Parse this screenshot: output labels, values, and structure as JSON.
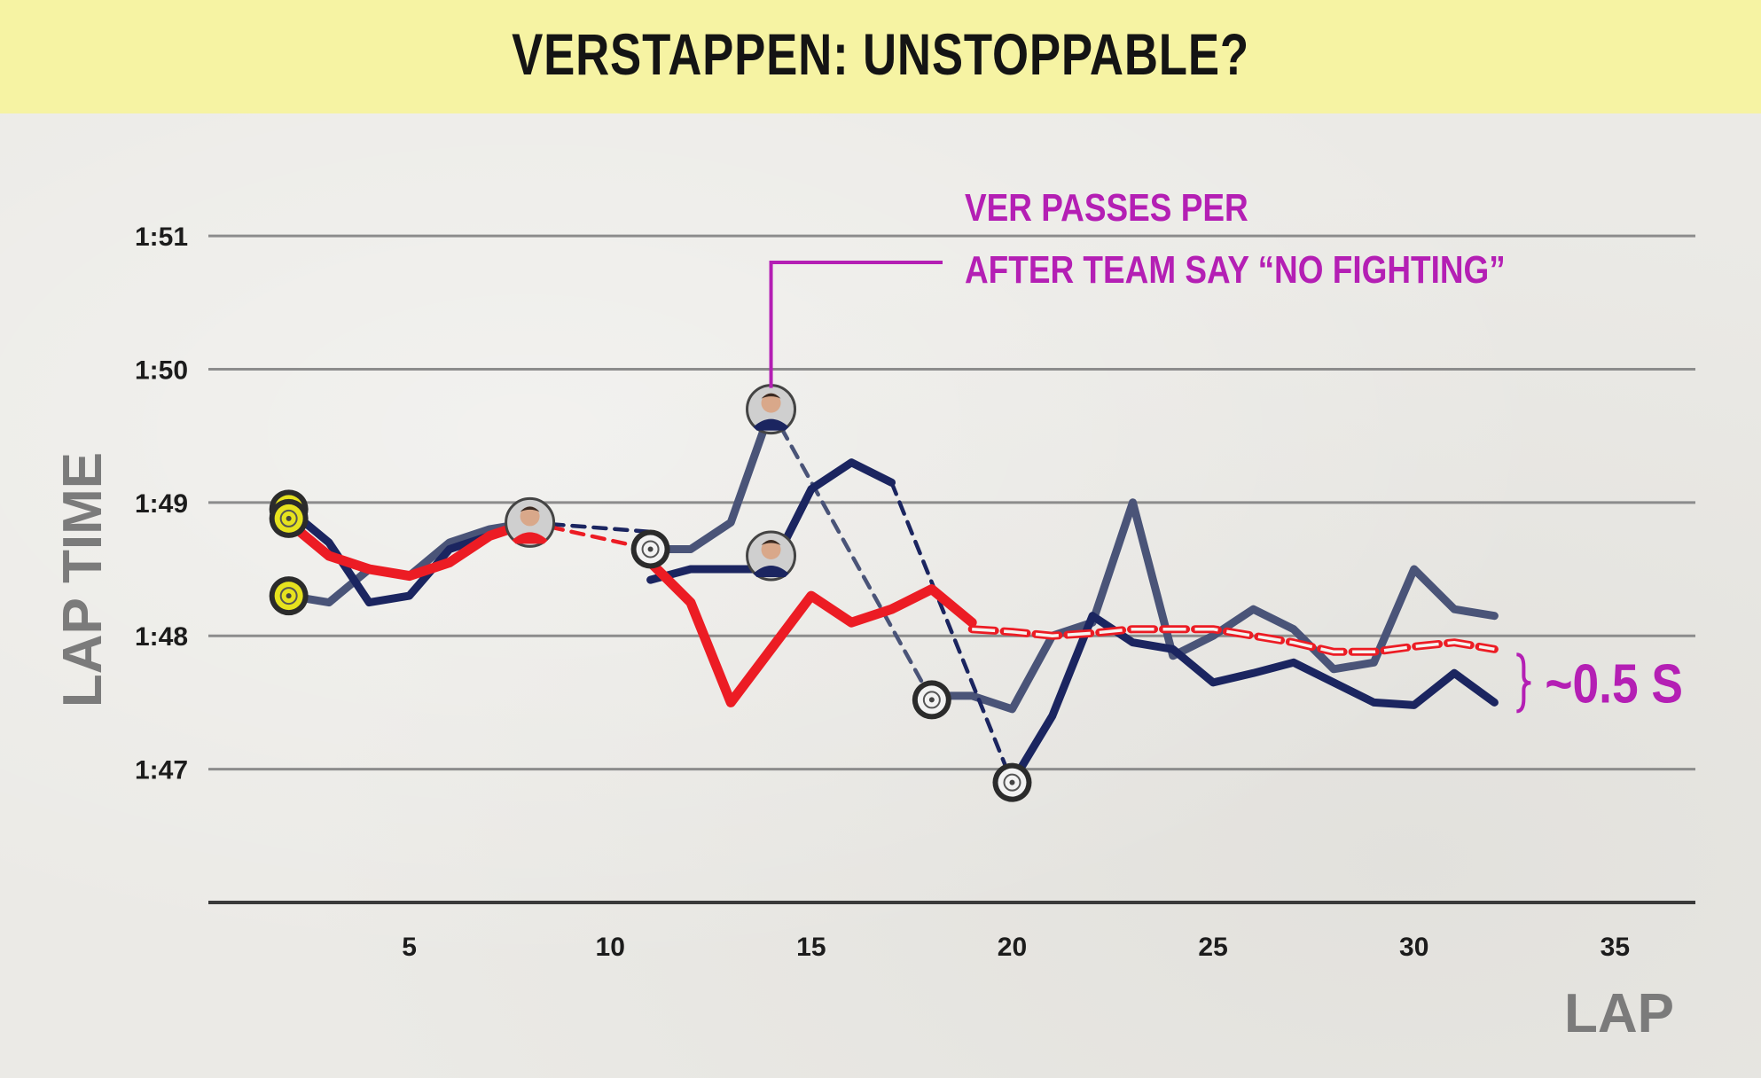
{
  "title": "VERSTAPPEN: UNSTOPPABLE?",
  "colors": {
    "title_bg": "#f6f3a3",
    "verstappen": "#1b2560",
    "perez": "#4a5478",
    "leclerc": "#ec1c24",
    "annotation": "#b41fb4",
    "grid": "#8c8c8c",
    "tyre_soft": "#e6e21e",
    "tyre_hard": "#f2f2f2"
  },
  "chart_data": {
    "type": "line",
    "title": "VERSTAPPEN: UNSTOPPABLE?",
    "xlabel": "LAP",
    "ylabel": "LAP TIME",
    "xlim": [
      0,
      37
    ],
    "ylim": [
      106.0,
      111.2
    ],
    "x_ticks": [
      5,
      10,
      15,
      20,
      25,
      30,
      35
    ],
    "y_ticks": [
      {
        "value": 107,
        "label": "1:47"
      },
      {
        "value": 108,
        "label": "1:48"
      },
      {
        "value": 109,
        "label": "1:49"
      },
      {
        "value": 110,
        "label": "1:50"
      },
      {
        "value": 111,
        "label": "1:51"
      }
    ],
    "grid": true,
    "series": [
      {
        "driver": "verstappen",
        "stints": [
          {
            "style": "solid",
            "x": [
              2,
              3,
              4,
              5,
              6,
              7,
              8
            ],
            "y": [
              108.95,
              108.7,
              108.25,
              108.3,
              108.65,
              108.75,
              108.85
            ]
          },
          {
            "style": "dashed",
            "x": [
              8,
              11
            ],
            "y": [
              108.85,
              108.78
            ]
          },
          {
            "style": "solid",
            "x": [
              11,
              12,
              13,
              14,
              15,
              16,
              17
            ],
            "y": [
              108.42,
              108.5,
              108.5,
              108.5,
              109.1,
              109.3,
              109.15
            ]
          },
          {
            "style": "dashed",
            "x": [
              17,
              20
            ],
            "y": [
              109.15,
              106.9
            ]
          },
          {
            "style": "solid",
            "x": [
              20,
              21,
              22,
              23,
              24,
              25,
              26,
              27,
              28,
              29,
              30,
              31,
              32
            ],
            "y": [
              106.9,
              107.4,
              108.15,
              107.95,
              107.9,
              107.65,
              107.72,
              107.8,
              107.65,
              107.5,
              107.48,
              107.72,
              107.5
            ]
          }
        ]
      },
      {
        "driver": "perez",
        "stints": [
          {
            "style": "solid",
            "x": [
              2,
              3,
              4,
              5,
              6,
              7,
              8
            ],
            "y": [
              108.3,
              108.25,
              108.5,
              108.45,
              108.7,
              108.8,
              108.85
            ]
          },
          {
            "style": "solid",
            "x": [
              11,
              12,
              13,
              14
            ],
            "y": [
              108.65,
              108.65,
              108.85,
              109.7
            ]
          },
          {
            "style": "dashed",
            "x": [
              14,
              18
            ],
            "y": [
              109.7,
              107.52
            ]
          },
          {
            "style": "solid",
            "x": [
              18,
              19,
              20,
              21,
              22,
              23,
              24,
              25,
              26,
              27,
              28,
              29,
              30,
              31,
              32
            ],
            "y": [
              107.55,
              107.55,
              107.45,
              108.0,
              108.1,
              109.0,
              107.85,
              108.0,
              108.2,
              108.05,
              107.75,
              107.8,
              108.5,
              108.2,
              108.15
            ]
          }
        ]
      },
      {
        "driver": "leclerc",
        "stints": [
          {
            "style": "solid",
            "x": [
              2,
              3,
              4,
              5,
              6,
              7,
              8
            ],
            "y": [
              108.85,
              108.6,
              108.5,
              108.45,
              108.55,
              108.75,
              108.85
            ]
          },
          {
            "style": "dashed",
            "x": [
              8,
              11
            ],
            "y": [
              108.85,
              108.65
            ]
          },
          {
            "style": "solid",
            "x": [
              11,
              12,
              13,
              14,
              15,
              16,
              17,
              18,
              19
            ],
            "y": [
              108.55,
              108.25,
              107.5,
              107.9,
              108.3,
              108.1,
              108.2,
              108.35,
              108.1
            ]
          },
          {
            "style": "dashed",
            "x": [
              19,
              20,
              21,
              22,
              23,
              24,
              25,
              26,
              27,
              28,
              29,
              30,
              31,
              32
            ],
            "y": [
              108.05,
              108.03,
              108.0,
              108.02,
              108.05,
              108.05,
              108.05,
              108.0,
              107.95,
              107.88,
              107.88,
              107.92,
              107.95,
              107.9
            ]
          }
        ]
      }
    ],
    "markers": [
      {
        "kind": "tyre",
        "compound": "soft",
        "x": 2,
        "y": 108.95
      },
      {
        "kind": "tyre",
        "compound": "soft",
        "x": 2,
        "y": 108.88
      },
      {
        "kind": "tyre",
        "compound": "soft",
        "x": 2,
        "y": 108.3
      },
      {
        "kind": "tyre",
        "compound": "hard",
        "x": 11,
        "y": 108.65
      },
      {
        "kind": "tyre",
        "compound": "hard",
        "x": 18,
        "y": 107.52
      },
      {
        "kind": "tyre",
        "compound": "hard",
        "x": 20,
        "y": 106.9
      },
      {
        "kind": "driver",
        "driver": "leclerc",
        "x": 8,
        "y": 108.85
      },
      {
        "kind": "driver",
        "driver": "perez",
        "x": 14,
        "y": 109.7
      },
      {
        "kind": "driver",
        "driver": "verstappen",
        "x": 14,
        "y": 108.6
      }
    ],
    "annotations": [
      {
        "id": "overtake",
        "lines": [
          "VER PASSES PER",
          "AFTER TEAM SAY “NO FIGHTING”"
        ],
        "x": 14,
        "y": 109.7
      },
      {
        "id": "gap",
        "text": "~0.5 S",
        "x": 32,
        "y_range": [
          107.5,
          107.9
        ]
      }
    ]
  }
}
